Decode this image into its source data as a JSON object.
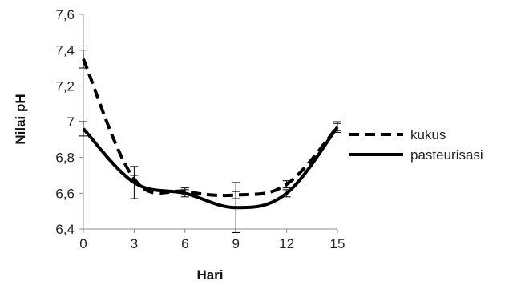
{
  "chart_data": {
    "type": "line",
    "xlabel": "Hari",
    "ylabel": "Nilai pH",
    "xlim": [
      0,
      15
    ],
    "ylim": [
      6.4,
      7.6
    ],
    "x_ticks": [
      "0",
      "3",
      "6",
      "9",
      "12",
      "15"
    ],
    "y_ticks": [
      "6,4",
      "6,6",
      "6,8",
      "7",
      "7,2",
      "7,4",
      "7,6"
    ],
    "grid": false,
    "legend_position": "right",
    "series": [
      {
        "name": "kukus",
        "style": "dashed",
        "color": "#000000",
        "x": [
          0,
          3,
          6,
          9,
          12,
          15
        ],
        "y": [
          7.35,
          6.68,
          6.61,
          6.59,
          6.65,
          6.97
        ],
        "error": [
          0.05,
          0.02,
          0.02,
          0.02,
          0.02,
          0.02
        ]
      },
      {
        "name": "pasteurisasi",
        "style": "solid",
        "color": "#000000",
        "x": [
          0,
          3,
          6,
          9,
          12,
          15
        ],
        "y": [
          6.96,
          6.66,
          6.6,
          6.52,
          6.6,
          6.97
        ],
        "error": [
          0.04,
          0.09,
          0.02,
          0.14,
          0.02,
          0.03
        ]
      }
    ]
  }
}
